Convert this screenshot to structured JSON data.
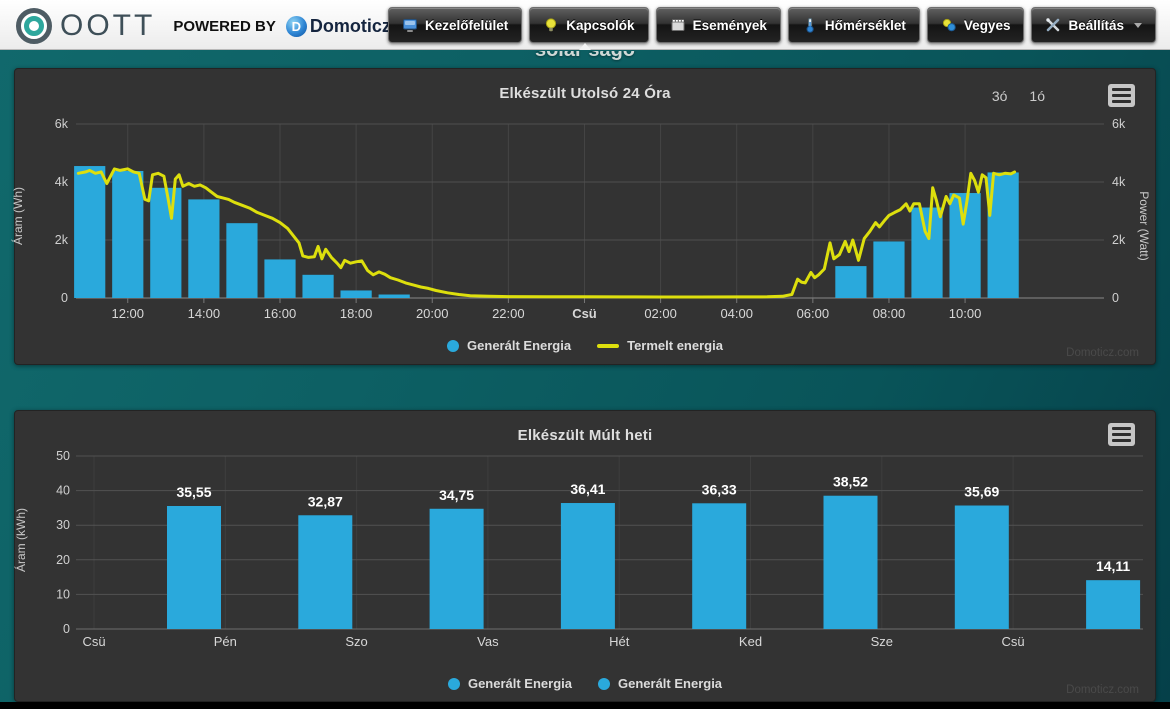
{
  "header": {
    "logo_text": "OOTT",
    "powered_by": "POWERED BY",
    "brand_initial": "D",
    "brand": "Domoticz",
    "nav": [
      {
        "label": "Kezelőfelület",
        "icon": "dashboard-icon"
      },
      {
        "label": "Kapcsolók",
        "icon": "lightbulb-icon"
      },
      {
        "label": "Események",
        "icon": "events-icon"
      },
      {
        "label": "Hőmérséklet",
        "icon": "thermometer-icon"
      },
      {
        "label": "Vegyes",
        "icon": "utility-icon"
      },
      {
        "label": "Beállítás",
        "icon": "wrench-icon",
        "has_caret": true
      }
    ]
  },
  "page": {
    "clipped_title": "solar ságo"
  },
  "colors": {
    "bar_blue": "#2AA9DC",
    "line_yellow": "#DDDF0D",
    "panel_bg": "#333333",
    "teal_bg": "#0d6064"
  },
  "chart_data": [
    {
      "type": "column+line",
      "title": "Elkészült Utolsó 24 Óra",
      "range_buttons": [
        "3ó",
        "1ó"
      ],
      "ylabel_left": "Áram (Wh)",
      "ylabel_right": "Power (Watt)",
      "ylim": [
        0,
        6000
      ],
      "yticks": [
        {
          "v": 0,
          "label": "0"
        },
        {
          "v": 2000,
          "label": "2k"
        },
        {
          "v": 4000,
          "label": "4k"
        },
        {
          "v": 6000,
          "label": "6k"
        }
      ],
      "xticks": [
        {
          "t": 12,
          "label": "12:00"
        },
        {
          "t": 14,
          "label": "14:00"
        },
        {
          "t": 16,
          "label": "16:00"
        },
        {
          "t": 18,
          "label": "18:00"
        },
        {
          "t": 20,
          "label": "20:00"
        },
        {
          "t": 22,
          "label": "22:00"
        },
        {
          "t": 24,
          "label": "Csü",
          "bold": true
        },
        {
          "t": 26,
          "label": "02:00"
        },
        {
          "t": 28,
          "label": "04:00"
        },
        {
          "t": 30,
          "label": "06:00"
        },
        {
          "t": 32,
          "label": "08:00"
        },
        {
          "t": 34,
          "label": "10:00"
        }
      ],
      "bars": {
        "name": "Generált Energia",
        "color": "#2AA9DC",
        "points": [
          [
            11,
            4550
          ],
          [
            12,
            4380
          ],
          [
            13,
            3800
          ],
          [
            14,
            3400
          ],
          [
            15,
            2580
          ],
          [
            16,
            1330
          ],
          [
            17,
            800
          ],
          [
            18,
            260
          ],
          [
            19,
            120
          ],
          [
            31,
            1100
          ],
          [
            32,
            1950
          ],
          [
            33,
            3120
          ],
          [
            34,
            3620
          ],
          [
            35,
            4330
          ]
        ]
      },
      "line": {
        "name": "Termelt energia",
        "color": "#DDDF0D",
        "points": [
          [
            10.7,
            4300
          ],
          [
            10.9,
            4350
          ],
          [
            11.0,
            4400
          ],
          [
            11.15,
            4300
          ],
          [
            11.3,
            4350
          ],
          [
            11.45,
            3950
          ],
          [
            11.55,
            4200
          ],
          [
            11.65,
            4450
          ],
          [
            11.8,
            4400
          ],
          [
            12.0,
            4450
          ],
          [
            12.15,
            4350
          ],
          [
            12.3,
            4300
          ],
          [
            12.45,
            3400
          ],
          [
            12.55,
            3350
          ],
          [
            12.65,
            4250
          ],
          [
            12.8,
            4300
          ],
          [
            12.95,
            4200
          ],
          [
            13.05,
            3500
          ],
          [
            13.15,
            2750
          ],
          [
            13.25,
            4100
          ],
          [
            13.35,
            4250
          ],
          [
            13.45,
            3850
          ],
          [
            13.6,
            3950
          ],
          [
            13.75,
            3850
          ],
          [
            13.9,
            3900
          ],
          [
            14.05,
            3800
          ],
          [
            14.2,
            3650
          ],
          [
            14.35,
            3500
          ],
          [
            14.5,
            3450
          ],
          [
            14.65,
            3400
          ],
          [
            14.8,
            3300
          ],
          [
            15.0,
            3200
          ],
          [
            15.2,
            3100
          ],
          [
            15.4,
            2950
          ],
          [
            15.6,
            2850
          ],
          [
            15.8,
            2750
          ],
          [
            16.0,
            2600
          ],
          [
            16.2,
            2400
          ],
          [
            16.35,
            2150
          ],
          [
            16.5,
            1900
          ],
          [
            16.6,
            1450
          ],
          [
            16.75,
            1400
          ],
          [
            16.9,
            1420
          ],
          [
            17.0,
            1780
          ],
          [
            17.1,
            1350
          ],
          [
            17.2,
            1680
          ],
          [
            17.35,
            1400
          ],
          [
            17.5,
            1200
          ],
          [
            17.6,
            1050
          ],
          [
            17.7,
            1300
          ],
          [
            17.85,
            1200
          ],
          [
            18.0,
            1250
          ],
          [
            18.15,
            1280
          ],
          [
            18.3,
            950
          ],
          [
            18.45,
            800
          ],
          [
            18.6,
            900
          ],
          [
            18.75,
            820
          ],
          [
            18.9,
            700
          ],
          [
            19.1,
            620
          ],
          [
            19.3,
            520
          ],
          [
            19.5,
            450
          ],
          [
            19.7,
            380
          ],
          [
            19.9,
            330
          ],
          [
            20.1,
            260
          ],
          [
            20.4,
            180
          ],
          [
            20.7,
            120
          ],
          [
            21.0,
            80
          ],
          [
            21.5,
            60
          ],
          [
            22.0,
            50
          ],
          [
            23.0,
            45
          ],
          [
            24.0,
            40
          ],
          [
            25.0,
            38
          ],
          [
            26.0,
            36
          ],
          [
            27.0,
            36
          ],
          [
            28.0,
            38
          ],
          [
            28.8,
            42
          ],
          [
            29.2,
            60
          ],
          [
            29.45,
            120
          ],
          [
            29.6,
            650
          ],
          [
            29.7,
            550
          ],
          [
            29.8,
            520
          ],
          [
            29.95,
            880
          ],
          [
            30.05,
            700
          ],
          [
            30.15,
            800
          ],
          [
            30.3,
            1000
          ],
          [
            30.45,
            1900
          ],
          [
            30.55,
            1350
          ],
          [
            30.7,
            1500
          ],
          [
            30.85,
            1950
          ],
          [
            30.95,
            1600
          ],
          [
            31.05,
            2000
          ],
          [
            31.2,
            1300
          ],
          [
            31.35,
            2050
          ],
          [
            31.5,
            2300
          ],
          [
            31.65,
            2600
          ],
          [
            31.75,
            2450
          ],
          [
            31.9,
            2700
          ],
          [
            32.0,
            2850
          ],
          [
            32.15,
            2950
          ],
          [
            32.3,
            3050
          ],
          [
            32.45,
            3250
          ],
          [
            32.55,
            3000
          ],
          [
            32.65,
            3250
          ],
          [
            32.8,
            3250
          ],
          [
            32.95,
            2300
          ],
          [
            33.05,
            2050
          ],
          [
            33.15,
            3800
          ],
          [
            33.25,
            3350
          ],
          [
            33.35,
            2800
          ],
          [
            33.5,
            3500
          ],
          [
            33.6,
            3250
          ],
          [
            33.7,
            3550
          ],
          [
            33.85,
            3450
          ],
          [
            33.95,
            2550
          ],
          [
            34.05,
            3350
          ],
          [
            34.15,
            4300
          ],
          [
            34.25,
            4050
          ],
          [
            34.35,
            3650
          ],
          [
            34.45,
            4250
          ],
          [
            34.55,
            4150
          ],
          [
            34.65,
            2850
          ],
          [
            34.75,
            4300
          ],
          [
            34.9,
            4250
          ],
          [
            35.05,
            4300
          ],
          [
            35.2,
            4280
          ],
          [
            35.3,
            4350
          ]
        ]
      },
      "watermark": "Domoticz.com"
    },
    {
      "type": "bar",
      "title": "Elkészült Múlt heti",
      "ylabel": "Áram (kWh)",
      "ylim": [
        0,
        50
      ],
      "yticks": [
        0,
        10,
        20,
        30,
        40,
        50
      ],
      "categories": [
        "Csü",
        "Pén",
        "Szo",
        "Vas",
        "Hét",
        "Ked",
        "Sze",
        "Csü"
      ],
      "values": [
        35.55,
        32.87,
        34.75,
        36.41,
        36.33,
        38.52,
        35.69,
        14.11
      ],
      "value_labels": [
        "35,55",
        "32,87",
        "34,75",
        "36,41",
        "36,33",
        "38,52",
        "35,69",
        "14,11"
      ],
      "series_color": "#2AA9DC",
      "legend": [
        "Generált Energia",
        "Generált Energia"
      ],
      "watermark": "Domoticz.com"
    }
  ]
}
